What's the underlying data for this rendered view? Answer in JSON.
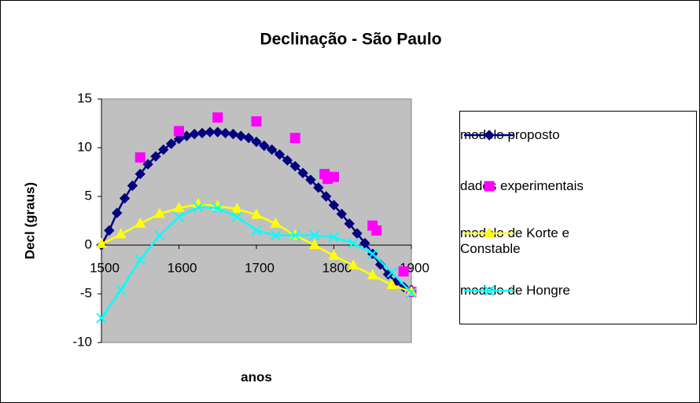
{
  "chart_data": {
    "type": "scatter",
    "title": "Declinação - São Paulo",
    "x_label": "anos",
    "y_label": "Decl (graus)",
    "xlim": [
      1500,
      1900
    ],
    "xticks": [
      1500,
      1600,
      1700,
      1800,
      1900
    ],
    "ylim": [
      -10,
      15
    ],
    "yticks": [
      -10,
      -5,
      0,
      5,
      10,
      15
    ],
    "grid": false,
    "legend": "right",
    "series": [
      {
        "name": "modelo proposto",
        "color": "#000080",
        "marker": "diamond",
        "line": true,
        "x": [
          1500,
          1510,
          1520,
          1530,
          1540,
          1550,
          1560,
          1570,
          1580,
          1590,
          1600,
          1610,
          1620,
          1630,
          1640,
          1650,
          1660,
          1670,
          1680,
          1690,
          1700,
          1710,
          1720,
          1730,
          1740,
          1750,
          1760,
          1770,
          1780,
          1790,
          1800,
          1810,
          1820,
          1830,
          1840,
          1850,
          1860,
          1870,
          1880,
          1890,
          1900
        ],
        "values": [
          0,
          1.5,
          3.3,
          4.8,
          6.1,
          7.3,
          8.3,
          9.1,
          9.8,
          10.4,
          10.9,
          11.2,
          11.4,
          11.5,
          11.6,
          11.6,
          11.5,
          11.4,
          11.2,
          11.0,
          10.6,
          10.2,
          9.8,
          9.3,
          8.7,
          8.1,
          7.4,
          6.7,
          5.9,
          5.0,
          4.1,
          3.2,
          2.2,
          1.2,
          0.2,
          -0.9,
          -2.0,
          -3.0,
          -3.8,
          -4.3,
          -4.6
        ]
      },
      {
        "name": "dados experimentais",
        "color": "#ff00ff",
        "marker": "square",
        "line": false,
        "x": [
          1550,
          1600,
          1650,
          1700,
          1750,
          1788,
          1792,
          1800,
          1850,
          1855,
          1890,
          1900
        ],
        "values": [
          9,
          11.7,
          13.1,
          12.7,
          11,
          7.3,
          6.8,
          7,
          2,
          1.5,
          -2.7,
          -4.8
        ]
      },
      {
        "name": "modelo de Korte e Constable",
        "color": "#ffff00",
        "marker": "triangle",
        "line": true,
        "x": [
          1500,
          1525,
          1550,
          1575,
          1600,
          1625,
          1650,
          1675,
          1700,
          1725,
          1750,
          1775,
          1800,
          1825,
          1850,
          1875,
          1900
        ],
        "values": [
          0.1,
          1.1,
          2.2,
          3.2,
          3.8,
          4.2,
          4.0,
          3.7,
          3.1,
          2.2,
          1.0,
          0,
          -1.1,
          -2.1,
          -3.1,
          -4.1,
          -4.8
        ]
      },
      {
        "name": "modelo de Hongre",
        "color": "#00ffff",
        "marker": "x",
        "line": true,
        "x": [
          1500,
          1525,
          1550,
          1575,
          1600,
          1625,
          1650,
          1675,
          1700,
          1725,
          1750,
          1775,
          1800,
          1825,
          1850,
          1875,
          1900
        ],
        "values": [
          -7.5,
          -4.6,
          -1.5,
          1.0,
          2.9,
          3.9,
          3.8,
          2.9,
          1.5,
          1.0,
          1.0,
          1.0,
          0.8,
          0.2,
          -0.9,
          -2.8,
          -4.9
        ]
      }
    ]
  }
}
